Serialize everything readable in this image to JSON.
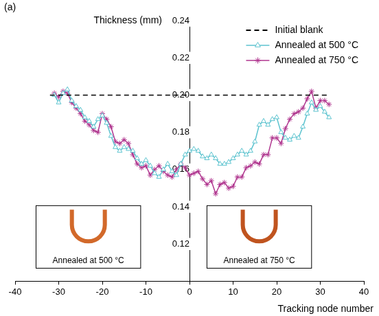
{
  "chart_data": {
    "type": "line",
    "panel_label": "(a)",
    "x_label": "Tracking node number",
    "y_label": "Thickness (mm)",
    "xlim": [
      -40,
      40
    ],
    "xticks": [
      -40,
      -30,
      -20,
      -10,
      0,
      10,
      20,
      30,
      40
    ],
    "ylim": [
      0.1,
      0.24
    ],
    "yticks": [
      0.12,
      0.14,
      0.16,
      0.18,
      {
        "value": 0.2,
        "label": "0.20"
      },
      0.22,
      0.24
    ],
    "grid": false,
    "legend": "upper right",
    "series": [
      {
        "name": "Initial blank",
        "color": "#000000",
        "marker": "none",
        "line_style": "dashed",
        "x": [
          -32,
          32
        ],
        "values": [
          0.2,
          0.2
        ]
      },
      {
        "name": "Annealed at 500 °C",
        "color": "#5cc3cf",
        "marker": "triangle",
        "line_style": "solid",
        "x": [
          -31,
          -30,
          -29,
          -28,
          -27,
          -26,
          -25,
          -24,
          -23,
          -22,
          -21,
          -20,
          -19,
          -18,
          -17,
          -16,
          -15,
          -14,
          -13,
          -12,
          -11,
          -10,
          -9,
          -8,
          -7,
          -6,
          -5,
          -4,
          -3,
          -2,
          -1,
          0,
          1,
          2,
          3,
          4,
          5,
          6,
          7,
          8,
          9,
          10,
          11,
          12,
          13,
          14,
          15,
          16,
          17,
          18,
          19,
          20,
          21,
          22,
          23,
          24,
          25,
          26,
          27,
          28,
          29,
          30,
          31,
          32
        ],
        "values": [
          0.2,
          0.196,
          0.201,
          0.203,
          0.197,
          0.194,
          0.192,
          0.188,
          0.186,
          0.183,
          0.187,
          0.189,
          0.185,
          0.178,
          0.172,
          0.17,
          0.172,
          0.171,
          0.17,
          0.166,
          0.163,
          0.165,
          0.162,
          0.158,
          0.156,
          0.16,
          0.163,
          0.159,
          0.157,
          0.163,
          0.168,
          0.17,
          0.171,
          0.17,
          0.167,
          0.166,
          0.168,
          0.166,
          0.163,
          0.163,
          0.164,
          0.166,
          0.168,
          0.17,
          0.168,
          0.17,
          0.175,
          0.184,
          0.186,
          0.184,
          0.187,
          0.188,
          0.18,
          0.177,
          0.176,
          0.178,
          0.177,
          0.183,
          0.19,
          0.196,
          0.192,
          0.194,
          0.191,
          0.188
        ]
      },
      {
        "name": "Annealed at 750 °C",
        "color": "#b0368f",
        "marker": "star",
        "line_style": "solid",
        "x": [
          -31,
          -30,
          -29,
          -28,
          -27,
          -26,
          -25,
          -24,
          -23,
          -22,
          -21,
          -20,
          -19,
          -18,
          -17,
          -16,
          -15,
          -14,
          -13,
          -12,
          -11,
          -10,
          -9,
          -8,
          -7,
          -6,
          -5,
          -4,
          -3,
          -2,
          -1,
          0,
          1,
          2,
          3,
          4,
          5,
          6,
          7,
          8,
          9,
          10,
          11,
          12,
          13,
          14,
          15,
          16,
          17,
          18,
          19,
          20,
          21,
          22,
          23,
          24,
          25,
          26,
          27,
          28,
          29,
          30,
          31,
          32
        ],
        "values": [
          0.201,
          0.199,
          0.202,
          0.201,
          0.196,
          0.193,
          0.19,
          0.186,
          0.184,
          0.181,
          0.18,
          0.19,
          0.187,
          0.183,
          0.175,
          0.174,
          0.176,
          0.174,
          0.168,
          0.163,
          0.161,
          0.162,
          0.157,
          0.16,
          0.162,
          0.159,
          0.157,
          0.156,
          0.16,
          0.163,
          0.161,
          0.157,
          0.158,
          0.159,
          0.155,
          0.152,
          0.154,
          0.147,
          0.152,
          0.153,
          0.15,
          0.151,
          0.156,
          0.156,
          0.161,
          0.162,
          0.164,
          0.163,
          0.168,
          0.168,
          0.177,
          0.177,
          0.174,
          0.182,
          0.187,
          0.19,
          0.191,
          0.193,
          0.198,
          0.202,
          0.193,
          0.197,
          0.197,
          0.195
        ]
      }
    ],
    "insets": [
      {
        "label": "Annealed at 500 °C"
      },
      {
        "label": "Annealed at 750 °C"
      }
    ]
  }
}
